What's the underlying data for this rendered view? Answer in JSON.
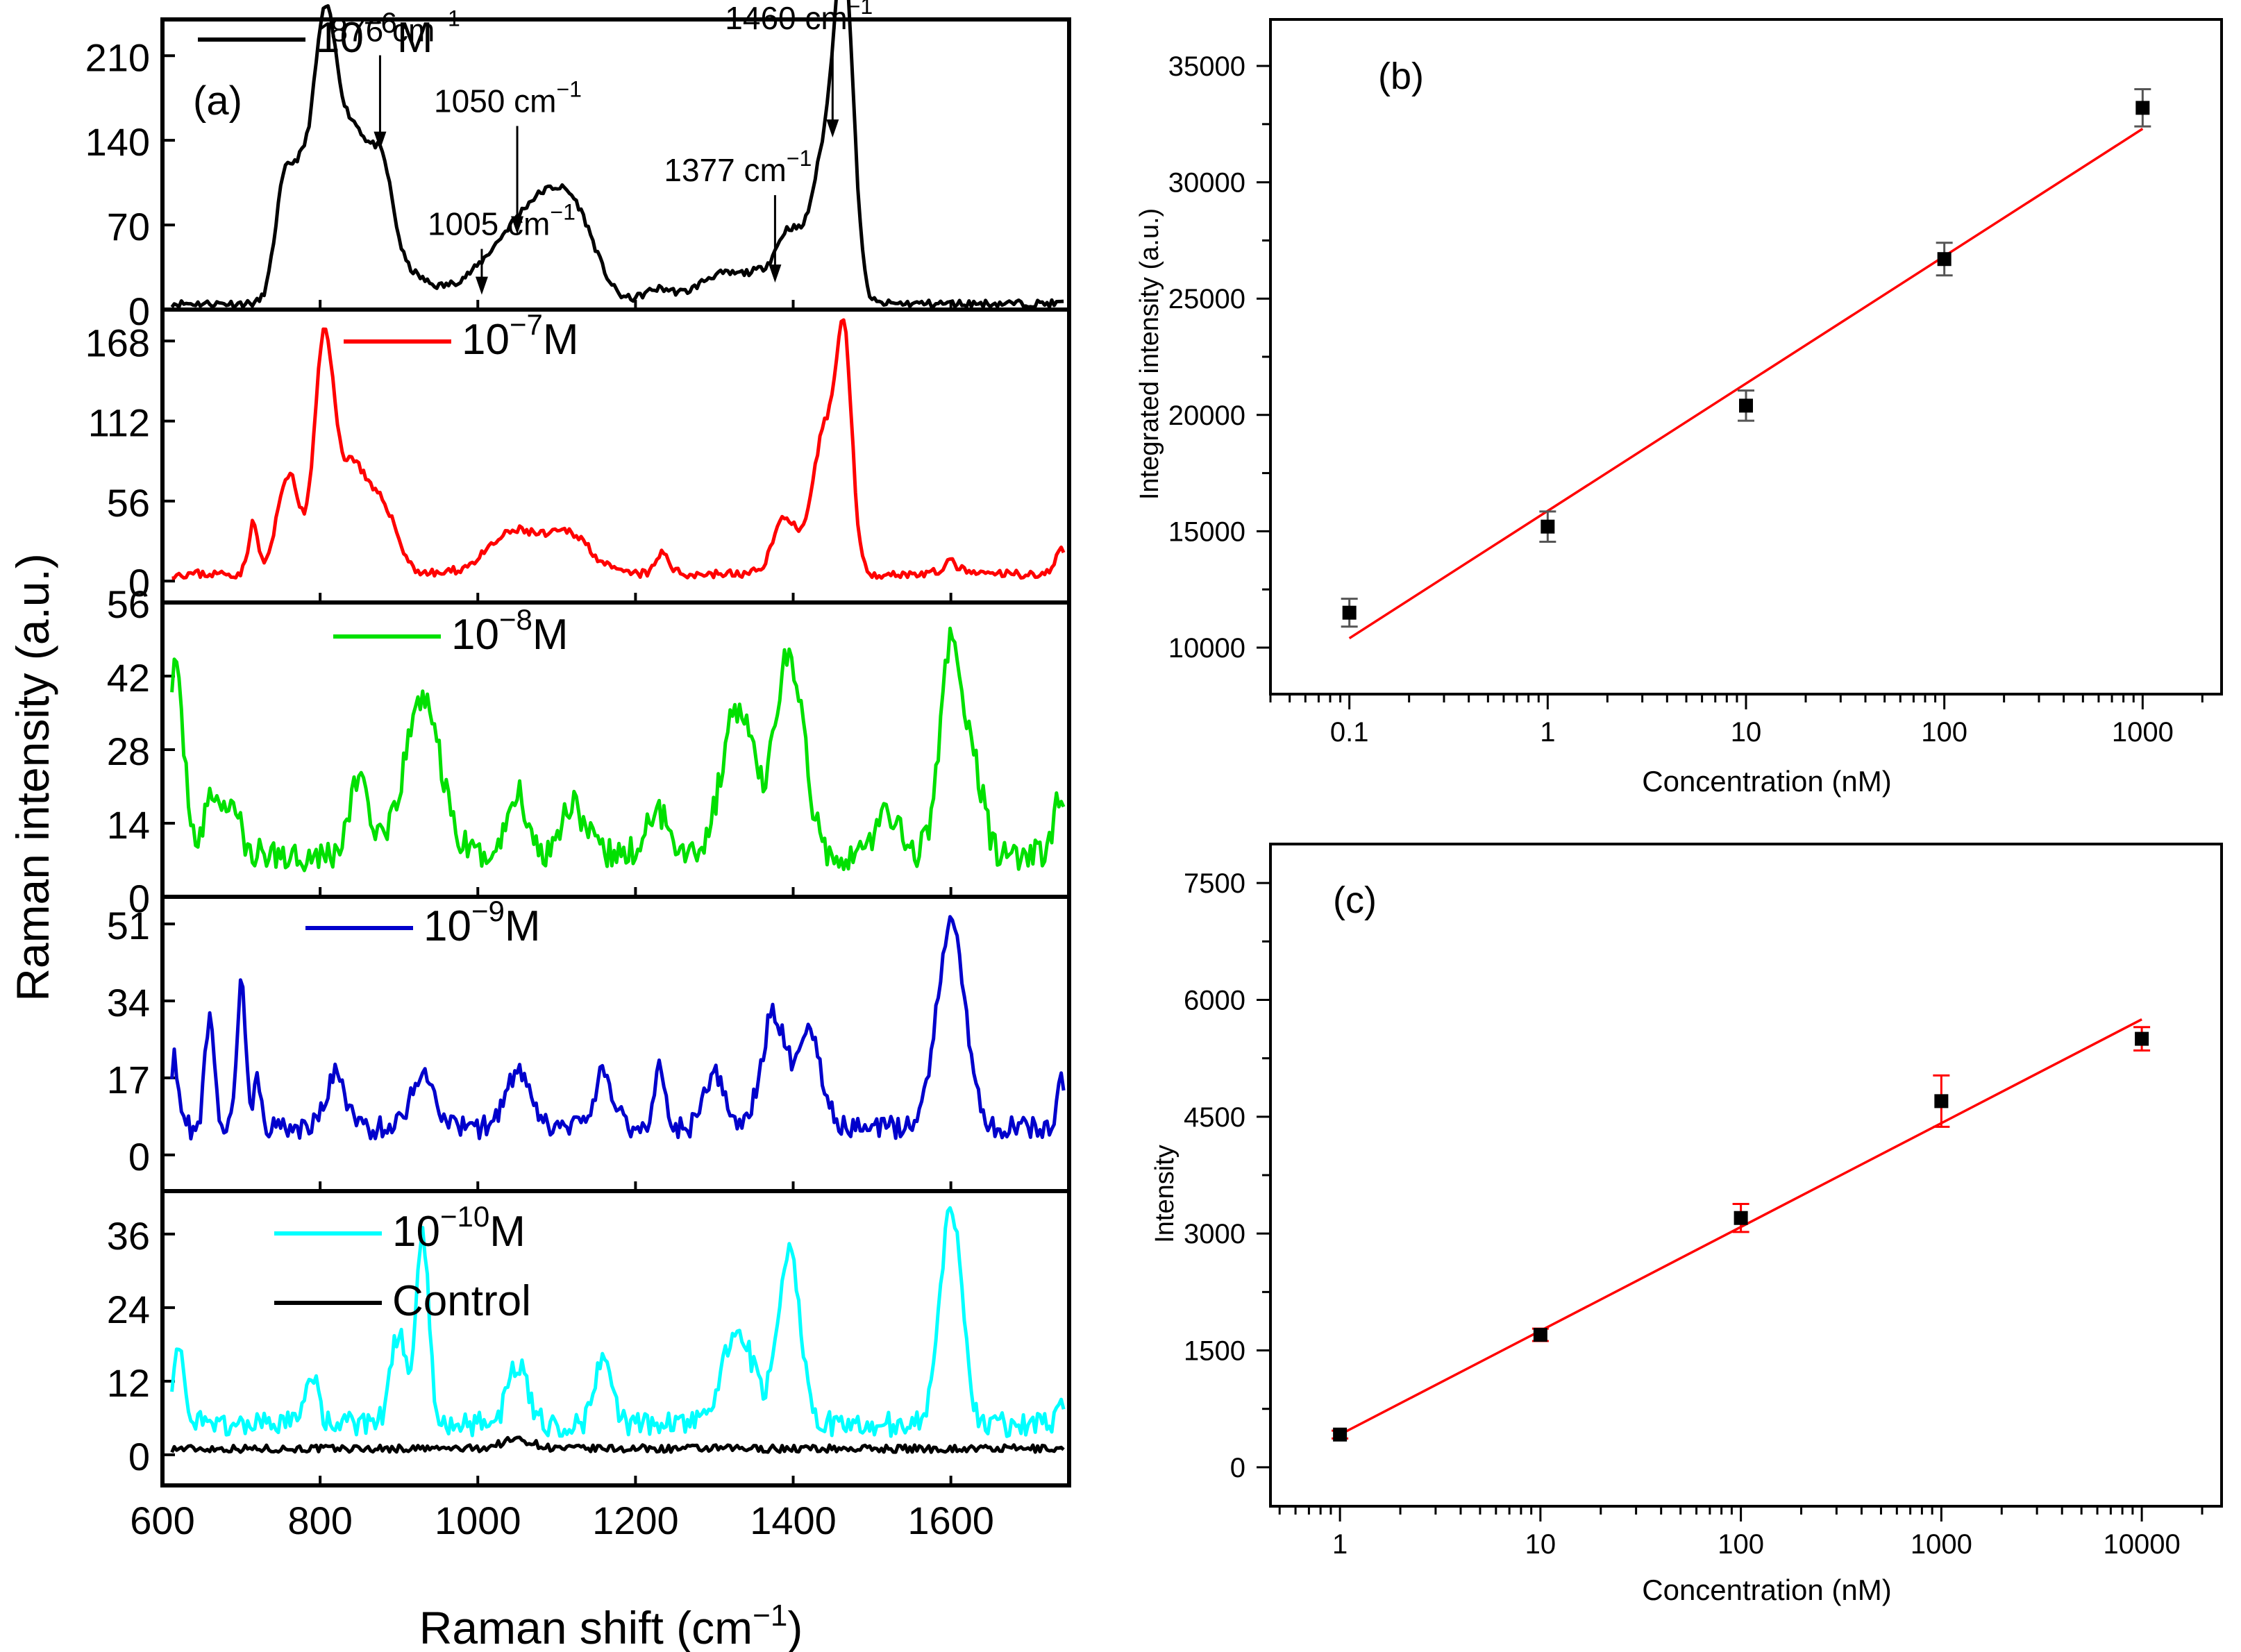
{
  "chart_data": [
    {
      "id": "a",
      "type": "line",
      "panel_label": "(a)",
      "xlabel_main": "Raman shift (cm",
      "xlabel_sup": "−1",
      "xlabel_close": ")",
      "ylabel": "Raman intensity (a.u.)",
      "xlim": [
        600,
        1750
      ],
      "xticks": [
        600,
        800,
        1000,
        1200,
        1400,
        1600
      ],
      "colors": {
        "c6": "#000000",
        "c7": "#ff0000",
        "c8": "#00e000",
        "c9": "#0000cc",
        "c10": "#00ffff",
        "control": "#000000"
      },
      "panels": [
        {
          "key": "p6",
          "ylim": [
            0,
            240
          ],
          "yticks": [
            0,
            70,
            140,
            210
          ],
          "series": [
            {
              "name": "10^-6 M",
              "legend_base": "10",
              "legend_exp": "−6",
              "legend_unit": "M",
              "color_key": "c6",
              "peaks": [
                [
                  755,
                  100,
                  12
                ],
                [
                  775,
                  60,
                  10
                ],
                [
                  805,
                  225,
                  16
                ],
                [
                  845,
                  135,
                  20
                ],
                [
                  880,
                  85,
                  14
                ],
                [
                  910,
                  20,
                  20
                ],
                [
                  960,
                  10,
                  40
                ],
                [
                  1050,
                  55,
                  40
                ],
                [
                  1095,
                  50,
                  30
                ],
                [
                  1130,
                  45,
                  25
                ],
                [
                  1230,
                  12,
                  20
                ],
                [
                  1300,
                  20,
                  25
                ],
                [
                  1360,
                  25,
                  30
                ],
                [
                  1395,
                  45,
                  15
                ],
                [
                  1440,
                  120,
                  18
                ],
                [
                  1465,
                  245,
                  12
                ]
              ],
              "base": 5,
              "noise": 3,
              "seed": 11
            }
          ],
          "annotations": [
            {
              "label": "876 cm",
              "sup": "−1",
              "x": 876,
              "y": 130
            },
            {
              "label": "1005 cm",
              "sup": "−1",
              "x": 1005,
              "y": 10
            },
            {
              "label": "1050 cm",
              "sup": "−1",
              "x": 1050,
              "y": 60
            },
            {
              "label": "1377 cm",
              "sup": "−1",
              "x": 1377,
              "y": 20
            },
            {
              "label": "1460 cm",
              "sup": "−1",
              "x": 1450,
              "y": 140
            }
          ]
        },
        {
          "key": "p7",
          "ylim": [
            -15,
            190
          ],
          "yticks": [
            0,
            56,
            112,
            168
          ],
          "series": [
            {
              "name": "10^-7 M",
              "legend_base": "10",
              "legend_exp": "−7",
              "legend_unit": "M",
              "color_key": "c7",
              "peaks": [
                [
                  715,
                  35,
                  6
                ],
                [
                  760,
                  70,
                  14
                ],
                [
                  805,
                  160,
                  12
                ],
                [
                  840,
                  75,
                  18
                ],
                [
                  880,
                  45,
                  18
                ],
                [
                  1050,
                  30,
                  35
                ],
                [
                  1120,
                  25,
                  25
                ],
                [
                  1235,
                  15,
                  8
                ],
                [
                  1390,
                  40,
                  15
                ],
                [
                  1440,
                  100,
                  15
                ],
                [
                  1465,
                  150,
                  10
                ],
                [
                  1600,
                  8,
                  10
                ],
                [
                  1740,
                  20,
                  6
                ]
              ],
              "base": 5,
              "noise": 3,
              "seed": 23
            }
          ]
        },
        {
          "key": "p8",
          "ylim": [
            0,
            56
          ],
          "yticks": [
            0,
            14,
            28,
            42,
            56
          ],
          "series": [
            {
              "name": "10^-8 M",
              "legend_base": "10",
              "legend_exp": "−8",
              "legend_unit": "M",
              "color_key": "c8",
              "peaks": [
                [
                  615,
                  35,
                  12
                ],
                [
                  665,
                  12,
                  10
                ],
                [
                  690,
                  10,
                  8
                ],
                [
                  850,
                  15,
                  12
                ],
                [
                  930,
                  30,
                  22
                ],
                [
                  1050,
                  12,
                  12
                ],
                [
                  1120,
                  10,
                  15
                ],
                [
                  1230,
                  8,
                  15
                ],
                [
                  1330,
                  28,
                  20
                ],
                [
                  1395,
                  38,
                  18
                ],
                [
                  1520,
                  8,
                  15
                ],
                [
                  1600,
                  40,
                  14
                ],
                [
                  1630,
                  15,
                  12
                ],
                [
                  1740,
                  12,
                  8
                ]
              ],
              "base": 8,
              "noise": 3,
              "seed": 37
            }
          ]
        },
        {
          "key": "p9",
          "ylim": [
            -8,
            57
          ],
          "yticks": [
            0,
            17,
            34,
            51
          ],
          "series": [
            {
              "name": "10^-9 M",
              "legend_base": "10",
              "legend_exp": "−9",
              "legend_unit": "M",
              "color_key": "c9",
              "peaks": [
                [
                  615,
                  15,
                  6
                ],
                [
                  660,
                  25,
                  6
                ],
                [
                  700,
                  35,
                  5
                ],
                [
                  720,
                  12,
                  5
                ],
                [
                  820,
                  12,
                  12
                ],
                [
                  930,
                  12,
                  15
                ],
                [
                  1050,
                  12,
                  15
                ],
                [
                  1160,
                  12,
                  12
                ],
                [
                  1230,
                  15,
                  6
                ],
                [
                  1300,
                  12,
                  12
                ],
                [
                  1375,
                  25,
                  15
                ],
                [
                  1420,
                  22,
                  15
                ],
                [
                  1600,
                  45,
                  18
                ],
                [
                  1740,
                  12,
                  5
                ]
              ],
              "base": 6,
              "noise": 2.5,
              "seed": 53
            }
          ]
        },
        {
          "key": "p10",
          "ylim": [
            -5,
            43
          ],
          "yticks": [
            0,
            12,
            24,
            36
          ],
          "series": [
            {
              "name": "10^-10 M",
              "legend_base": "10",
              "legend_exp": "−10",
              "legend_unit": "M",
              "color_key": "c10",
              "peaks": [
                [
                  620,
                  12,
                  8
                ],
                [
                  790,
                  8,
                  8
                ],
                [
                  900,
                  15,
                  10
                ],
                [
                  930,
                  30,
                  8
                ],
                [
                  1050,
                  10,
                  12
                ],
                [
                  1160,
                  12,
                  10
                ],
                [
                  1330,
                  15,
                  20
                ],
                [
                  1395,
                  28,
                  14
                ],
                [
                  1600,
                  35,
                  14
                ],
                [
                  1740,
                  5,
                  6
                ]
              ],
              "base": 5,
              "noise": 2,
              "seed": 71
            },
            {
              "name": "Control",
              "legend_base": "Control",
              "legend_exp": "",
              "legend_unit": "",
              "color_key": "control",
              "peaks": [
                [
                  1050,
                  1.5,
                  20
                ]
              ],
              "base": 1,
              "noise": 0.6,
              "seed": 97
            }
          ]
        }
      ]
    },
    {
      "id": "b",
      "type": "scatter",
      "panel_label": "(b)",
      "xscale": "log",
      "xlim": [
        0.04,
        2500
      ],
      "ylim": [
        8000,
        37000
      ],
      "xticks": [
        0.1,
        1,
        10,
        100,
        1000
      ],
      "xtick_labels": [
        "0.1",
        "1",
        "10",
        "100",
        "1000"
      ],
      "yticks": [
        10000,
        15000,
        20000,
        25000,
        30000,
        35000
      ],
      "xlabel": "Concentration (nM)",
      "ylabel": "Integrated intensity (a.u.)",
      "x": [
        0.1,
        1,
        10,
        100,
        1000
      ],
      "y": [
        11500,
        15200,
        20400,
        26700,
        33200
      ],
      "errors": [
        600,
        650,
        650,
        700,
        800
      ],
      "fit": {
        "x": [
          0.1,
          1000
        ],
        "y": [
          10400,
          32300
        ]
      },
      "point_color": "#000000",
      "error_color": "#555555",
      "fit_color": "#ff0000"
    },
    {
      "id": "c",
      "type": "scatter",
      "panel_label": "(c)",
      "xscale": "log",
      "xlim": [
        0.45,
        25000
      ],
      "ylim": [
        -500,
        8000
      ],
      "xticks": [
        1,
        10,
        100,
        1000,
        10000
      ],
      "xtick_labels": [
        "1",
        "10",
        "100",
        "1000",
        "10000"
      ],
      "yticks": [
        0,
        1500,
        3000,
        4500,
        6000,
        7500
      ],
      "xlabel": "Concentration (nM)",
      "ylabel": "Intensity",
      "x": [
        1,
        10,
        100,
        1000,
        10000
      ],
      "y": [
        420,
        1700,
        3200,
        4700,
        5500
      ],
      "errors": [
        50,
        80,
        180,
        330,
        150
      ],
      "fit": {
        "x": [
          1,
          10000
        ],
        "y": [
          420,
          5750
        ]
      },
      "point_color": "#000000",
      "error_color": "#ff0000",
      "fit_color": "#ff0000"
    }
  ]
}
